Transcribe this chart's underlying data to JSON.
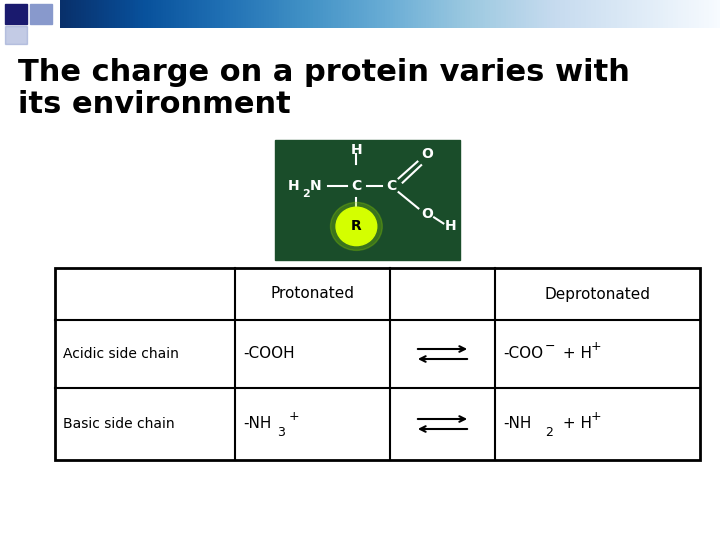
{
  "title_line1": "The charge on a protein varies with",
  "title_line2": "its environment",
  "title_fontsize": 22,
  "title_color": "#000000",
  "bg_color": "#ffffff",
  "header_row": [
    "",
    "Protonated",
    "",
    "Deprotonated"
  ],
  "row1_col0": "Acidic side chain",
  "row1_col1": "-COOH",
  "row1_col3": "-COO",
  "row2_col0": "Basic side chain",
  "row2_col1_base": "-NH",
  "row2_col1_sub": "3",
  "row2_col1_sup": "+",
  "row2_col3_base": "-NH",
  "row2_col3_sub": "2",
  "row2_col3_sup": "+ H",
  "row2_col3_sup2": "+",
  "image_bg": "#1a4d2a",
  "dec_color1": "#1a1a6e",
  "dec_color2": "#8899cc"
}
